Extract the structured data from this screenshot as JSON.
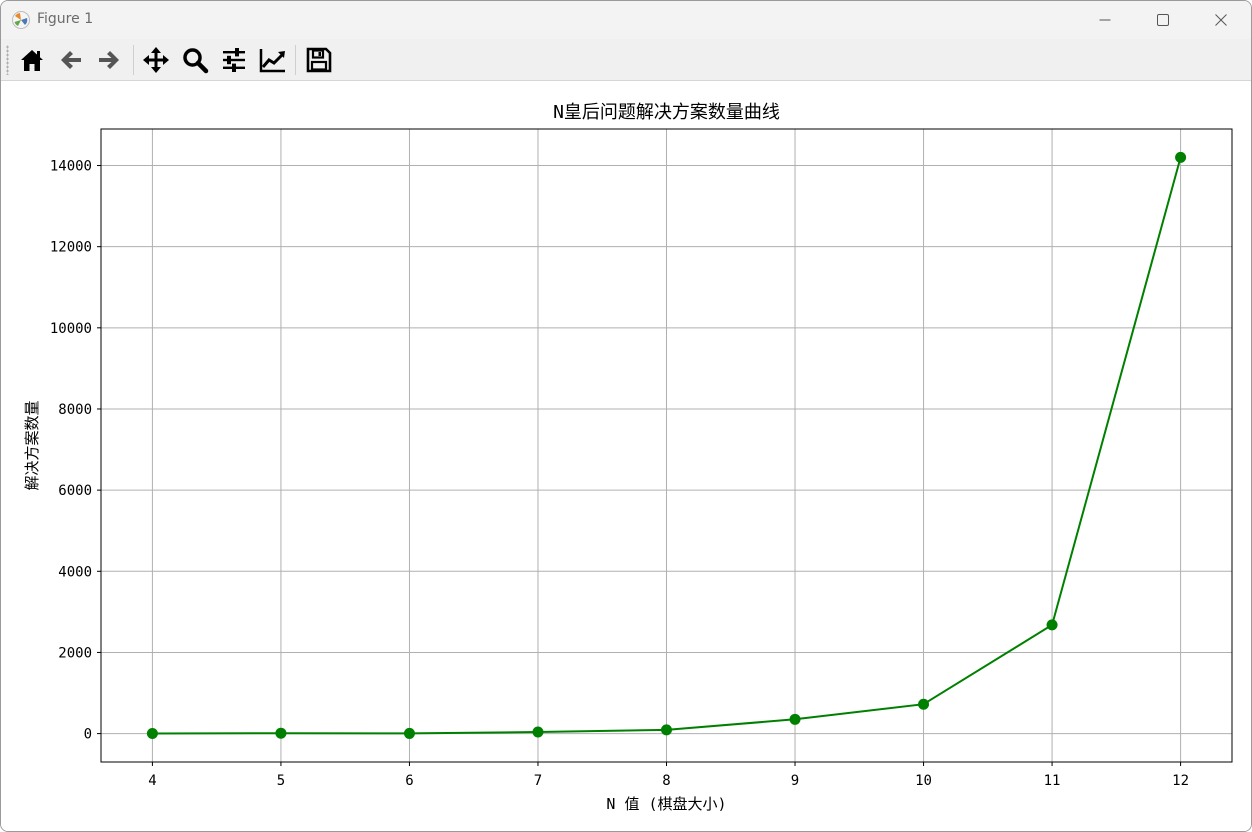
{
  "window": {
    "title": "Figure 1",
    "controls": [
      "minimize",
      "maximize",
      "close"
    ]
  },
  "toolbar": {
    "tools": [
      {
        "name": "home",
        "icon": "home-icon"
      },
      {
        "name": "back",
        "icon": "arrow-left-icon"
      },
      {
        "name": "forward",
        "icon": "arrow-right-icon"
      },
      {
        "name": "pan",
        "icon": "move-icon"
      },
      {
        "name": "zoom",
        "icon": "magnifier-icon"
      },
      {
        "name": "configure-subplots",
        "icon": "sliders-icon"
      },
      {
        "name": "edit-axes",
        "icon": "line-chart-icon"
      },
      {
        "name": "save",
        "icon": "floppy-disk-icon"
      }
    ]
  },
  "chart_data": {
    "type": "line",
    "title": "N皇后问题解决方案数量曲线",
    "xlabel": "N 值 (棋盘大小)",
    "ylabel": "解决方案数量",
    "x": [
      4,
      5,
      6,
      7,
      8,
      9,
      10,
      11,
      12
    ],
    "series": [
      {
        "values": [
          2,
          10,
          4,
          40,
          92,
          352,
          724,
          2680,
          14200
        ],
        "color": "#008000",
        "marker": "circle"
      }
    ],
    "xticks": [
      "4",
      "5",
      "6",
      "7",
      "8",
      "9",
      "10",
      "11",
      "12"
    ],
    "yticks": [
      "0",
      "2000",
      "4000",
      "6000",
      "8000",
      "10000",
      "12000",
      "14000"
    ],
    "xlim": [
      3.6,
      12.4
    ],
    "ylim": [
      -700,
      14900
    ],
    "grid": true
  }
}
